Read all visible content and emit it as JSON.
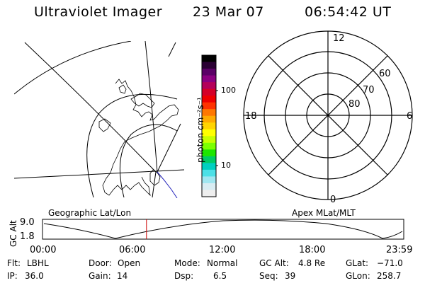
{
  "header": {
    "title": "Ultraviolet Imager",
    "date": "23 Mar 07",
    "time": "06:54:42 UT"
  },
  "colorbar": {
    "unit": "photon cm⁻²s⁻¹",
    "ticks": [
      {
        "label": "100",
        "frac": 0.25
      },
      {
        "label": "10",
        "frac": 0.78
      }
    ],
    "colors": [
      "#000000",
      "#2a0033",
      "#5a0066",
      "#8a0080",
      "#b4005a",
      "#d40028",
      "#ee0000",
      "#ff3300",
      "#ff7700",
      "#ffaa00",
      "#ffd400",
      "#ffff00",
      "#c8ff00",
      "#7cff00",
      "#1ee600",
      "#00cc66",
      "#00d0c0",
      "#4ce0e6",
      "#a0e6f0",
      "#d8ecf2",
      "#eeeeee"
    ]
  },
  "polar_plot": {
    "ring_labels": [
      "80",
      "70",
      "60"
    ],
    "clock_labels": {
      "top": "12",
      "left": "18",
      "right": "6",
      "bottom": "0"
    }
  },
  "map_labels": {
    "geographic": "Geographic Lat/Lon",
    "apex": "Apex MLat/MLT"
  },
  "altitude_plot": {
    "ylabel": "GC Alt",
    "yticks": [
      "9.0",
      "1.8"
    ],
    "xticks": [
      "00:00",
      "06:00",
      "12:00",
      "18:00",
      "23:59"
    ],
    "marker_hour": 6.91
  },
  "status": [
    [
      {
        "key": "Flt:",
        "value": "LBHL"
      },
      {
        "key": "Door:",
        "value": "Open"
      },
      {
        "key": "Mode:",
        "value": "Normal"
      },
      {
        "key": "GC Alt:",
        "value": "4.8 Re"
      },
      {
        "key": "GLat:",
        "value": "−71.0"
      }
    ],
    [
      {
        "key": "IP:",
        "value": "36.0"
      },
      {
        "key": "Gain:",
        "value": "14"
      },
      {
        "key": "Dsp:",
        "value": "6.5"
      },
      {
        "key": "Seq:",
        "value": "39"
      },
      {
        "key": "GLon:",
        "value": "258.7"
      }
    ]
  ]
}
